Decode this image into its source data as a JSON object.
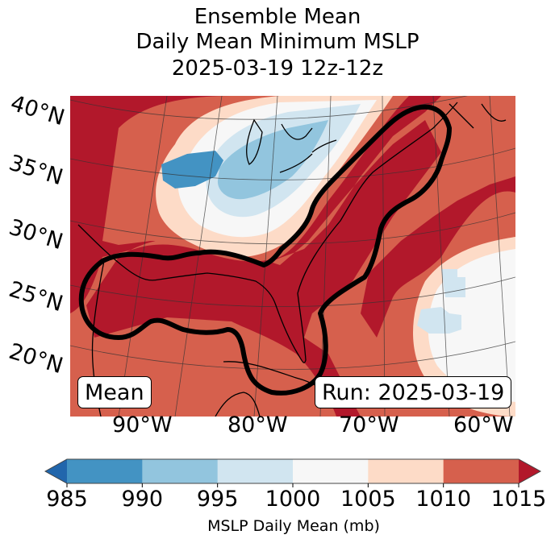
{
  "chart_data": {
    "type": "heatmap",
    "title": [
      "Ensemble Mean",
      "Daily Mean Minimum MSLP",
      "2025-03-19 12z-12z"
    ],
    "projection": "conic",
    "lat_ticks": [
      "40°N",
      "35°N",
      "30°N",
      "25°N",
      "20°N"
    ],
    "lon_ticks": [
      "90°W",
      "80°W",
      "70°W",
      "60°W"
    ],
    "field": "MSLP Daily Mean (mb)",
    "features": {
      "low_center": "Great Lakes / Ohio Valley, approx 985-990 mb",
      "secondary_low": "western Atlantic near 30°N 62°W, 995-1000 mb",
      "high_pressure": "Gulf of Mexico, Florida, US East Coast and New England > 1010-1015 mb",
      "contour": "thick black contour enclosing Gulf Coast, Florida, Eastern Seaboard to Nova Scotia"
    },
    "colorbar": {
      "label": "MSLP Daily Mean (mb)",
      "ticks": [
        985,
        990,
        995,
        1000,
        1005,
        1010,
        1015
      ],
      "extend": "both",
      "colors": [
        "#2166ac",
        "#4393c3",
        "#92c5de",
        "#d1e5f0",
        "#f7f7f7",
        "#fddbc7",
        "#d6604d",
        "#b2182b"
      ]
    }
  },
  "annotations": {
    "left_box": "Mean",
    "right_box": "Run: 2025-03-19"
  }
}
